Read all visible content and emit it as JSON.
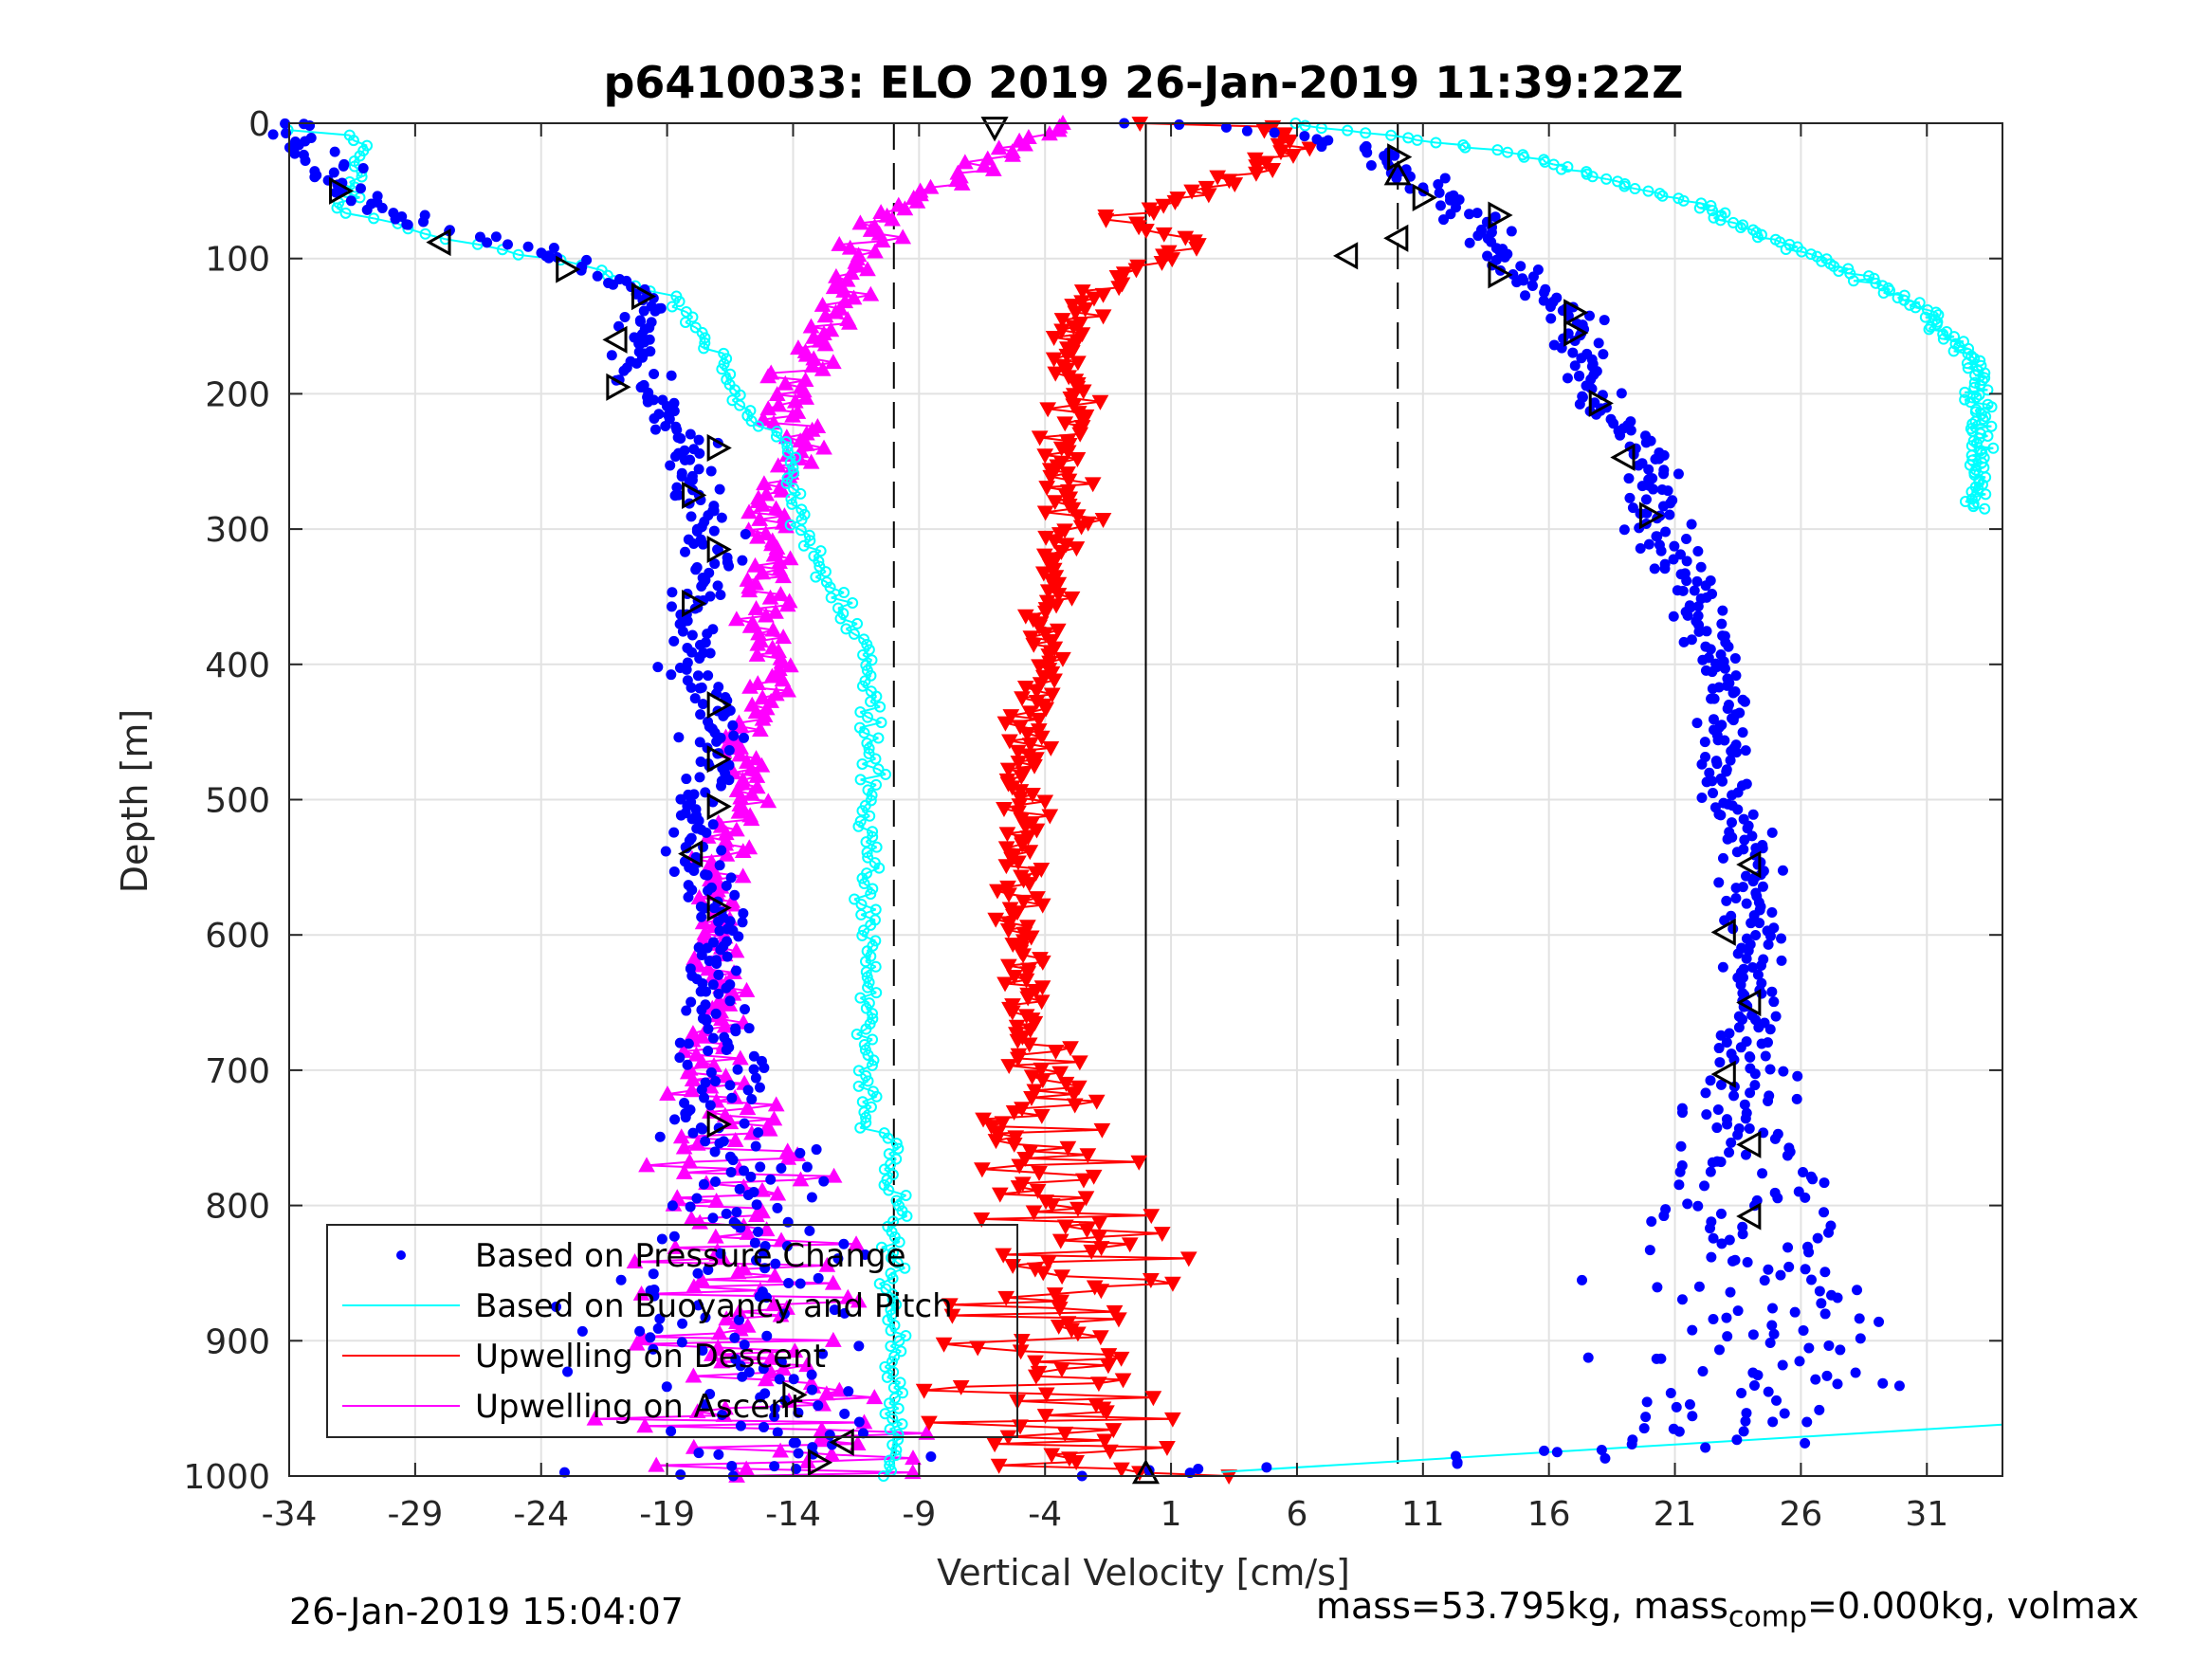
{
  "chart_data": {
    "type": "scatter",
    "title": "p6410033: ELO 2019 26-Jan-2019 11:39:22Z",
    "xlabel": "Vertical Velocity [cm/s]",
    "ylabel": "Depth [m]",
    "xlim": [
      -34,
      34
    ],
    "ylim": [
      0,
      1000
    ],
    "y_reversed": true,
    "xticks": [
      -34,
      -29,
      -24,
      -19,
      -14,
      -9,
      -4,
      1,
      6,
      11,
      16,
      21,
      26,
      31
    ],
    "yticks": [
      0,
      100,
      200,
      300,
      400,
      500,
      600,
      700,
      800,
      900,
      1000
    ],
    "grid": true,
    "legend_position": "bottom-left",
    "reference_lines": {
      "solid": [
        0
      ],
      "dashed": [
        -10,
        10
      ]
    },
    "colors": {
      "pressure": "#0000ff",
      "buoyancy": "#00ffff",
      "descent": "#ff0000",
      "ascent": "#ff00ff",
      "markers": "#000000"
    },
    "series": [
      {
        "name": "Based on Pressure Change",
        "marker": "dot",
        "descent": [
          [
            -34,
            0
          ],
          [
            -32,
            45
          ],
          [
            -29,
            75
          ],
          [
            -26,
            85
          ],
          [
            -22,
            105
          ],
          [
            -20,
            130
          ],
          [
            -20,
            170
          ],
          [
            -20,
            200
          ],
          [
            -18,
            240
          ],
          [
            -18,
            280
          ],
          [
            -17,
            320
          ],
          [
            -18,
            360
          ],
          [
            -18,
            400
          ],
          [
            -17,
            430
          ],
          [
            -17,
            470
          ],
          [
            -18,
            510
          ],
          [
            -18,
            550
          ],
          [
            -17,
            580
          ],
          [
            -17,
            640
          ],
          [
            -17,
            700
          ],
          [
            -17,
            740
          ],
          [
            -16,
            780
          ],
          [
            -16,
            830
          ],
          [
            -17,
            880
          ],
          [
            -16,
            930
          ],
          [
            -14,
            970
          ],
          [
            -14,
            1000
          ]
        ],
        "ascent": [
          [
            0,
            0
          ],
          [
            5,
            5
          ],
          [
            9,
            20
          ],
          [
            10,
            35
          ],
          [
            12,
            55
          ],
          [
            13,
            70
          ],
          [
            14,
            95
          ],
          [
            15,
            115
          ],
          [
            17,
            140
          ],
          [
            17,
            160
          ],
          [
            18,
            210
          ],
          [
            19,
            230
          ],
          [
            20,
            250
          ],
          [
            20,
            290
          ],
          [
            21,
            320
          ],
          [
            22,
            360
          ],
          [
            23,
            400
          ],
          [
            23,
            450
          ],
          [
            23,
            500
          ],
          [
            24,
            540
          ],
          [
            24,
            560
          ],
          [
            24,
            600
          ],
          [
            24,
            650
          ],
          [
            24,
            700
          ],
          [
            24,
            760
          ],
          [
            24,
            810
          ],
          [
            24,
            850
          ],
          [
            24,
            900
          ],
          [
            24,
            950
          ],
          [
            21,
            975
          ],
          [
            16,
            985
          ],
          [
            6,
            995
          ],
          [
            0,
            1000
          ]
        ]
      },
      {
        "name": "Based on Buoyancy and Pitch",
        "marker": "open-circle",
        "descent": [
          [
            -34,
            5
          ],
          [
            -31,
            10
          ],
          [
            -32,
            65
          ],
          [
            -29,
            80
          ],
          [
            -26,
            92
          ],
          [
            -22,
            108
          ],
          [
            -19,
            128
          ],
          [
            -17,
            175
          ],
          [
            -16,
            210
          ],
          [
            -14,
            240
          ],
          [
            -14,
            280
          ],
          [
            -13,
            320
          ],
          [
            -12,
            355
          ],
          [
            -11,
            400
          ],
          [
            -11,
            450
          ],
          [
            -11,
            500
          ],
          [
            -11,
            550
          ],
          [
            -11,
            600
          ],
          [
            -11,
            650
          ],
          [
            -11,
            700
          ],
          [
            -11,
            740
          ],
          [
            -10,
            760
          ],
          [
            -10,
            850
          ],
          [
            -10,
            950
          ],
          [
            -10,
            1000
          ]
        ],
        "ascent": [
          [
            6,
            0
          ],
          [
            10,
            10
          ],
          [
            14,
            20
          ],
          [
            18,
            40
          ],
          [
            22,
            60
          ],
          [
            24,
            80
          ],
          [
            27,
            100
          ],
          [
            29,
            120
          ],
          [
            31,
            140
          ],
          [
            32,
            160
          ],
          [
            33,
            180
          ],
          [
            33,
            200
          ],
          [
            33,
            230
          ],
          [
            33,
            285
          ],
          [
            3,
            997
          ]
        ]
      },
      {
        "name": "Upwelling on Descent",
        "marker": "triangle-down",
        "points": [
          [
            0,
            0
          ],
          [
            5,
            2
          ],
          [
            6,
            20
          ],
          [
            2,
            50
          ],
          [
            -1,
            70
          ],
          [
            2,
            90
          ],
          [
            -1,
            110
          ],
          [
            -3,
            150
          ],
          [
            -3,
            200
          ],
          [
            -3,
            250
          ],
          [
            -3,
            300
          ],
          [
            -4,
            350
          ],
          [
            -4,
            400
          ],
          [
            -5,
            450
          ],
          [
            -5,
            500
          ],
          [
            -5,
            550
          ],
          [
            -5,
            600
          ],
          [
            -5,
            650
          ],
          [
            -4,
            700
          ],
          [
            -4,
            750
          ],
          [
            -3,
            800
          ],
          [
            -3,
            850
          ],
          [
            -3,
            900
          ],
          [
            -3,
            950
          ],
          [
            -2,
            985
          ],
          [
            0,
            1000
          ]
        ]
      },
      {
        "name": "Upwelling on Ascent",
        "marker": "triangle-up",
        "points": [
          [
            -3,
            0
          ],
          [
            -6,
            20
          ],
          [
            -7,
            40
          ],
          [
            -10,
            60
          ],
          [
            -11,
            90
          ],
          [
            -12,
            120
          ],
          [
            -13,
            160
          ],
          [
            -14,
            200
          ],
          [
            -14,
            240
          ],
          [
            -15,
            280
          ],
          [
            -15,
            320
          ],
          [
            -15,
            380
          ],
          [
            -15,
            420
          ],
          [
            -16,
            460
          ],
          [
            -16,
            500
          ],
          [
            -17,
            550
          ],
          [
            -17,
            600
          ],
          [
            -17,
            650
          ],
          [
            -17,
            700
          ],
          [
            -16,
            750
          ],
          [
            -16,
            800
          ],
          [
            -16,
            850
          ],
          [
            -16,
            900
          ],
          [
            -15,
            950
          ],
          [
            -14,
            1000
          ]
        ]
      }
    ],
    "waypoint_markers": [
      {
        "x": -32,
        "y": 50,
        "dir": "right"
      },
      {
        "x": -28,
        "y": 88,
        "dir": "left"
      },
      {
        "x": -23,
        "y": 108,
        "dir": "right"
      },
      {
        "x": -20,
        "y": 128,
        "dir": "right"
      },
      {
        "x": -21,
        "y": 160,
        "dir": "left"
      },
      {
        "x": -21,
        "y": 195,
        "dir": "right"
      },
      {
        "x": -17,
        "y": 240,
        "dir": "right"
      },
      {
        "x": -18,
        "y": 275,
        "dir": "right"
      },
      {
        "x": -17,
        "y": 315,
        "dir": "right"
      },
      {
        "x": -18,
        "y": 355,
        "dir": "right"
      },
      {
        "x": -17,
        "y": 430,
        "dir": "right"
      },
      {
        "x": -17,
        "y": 470,
        "dir": "right"
      },
      {
        "x": -17,
        "y": 505,
        "dir": "right"
      },
      {
        "x": -18,
        "y": 540,
        "dir": "left"
      },
      {
        "x": -17,
        "y": 580,
        "dir": "right"
      },
      {
        "x": -17,
        "y": 740,
        "dir": "right"
      },
      {
        "x": -14,
        "y": 940,
        "dir": "right"
      },
      {
        "x": -12,
        "y": 975,
        "dir": "left"
      },
      {
        "x": -13,
        "y": 990,
        "dir": "right"
      },
      {
        "x": -6,
        "y": 3,
        "dir": "down"
      },
      {
        "x": 10,
        "y": 25,
        "dir": "right"
      },
      {
        "x": 10,
        "y": 38,
        "dir": "up"
      },
      {
        "x": 11,
        "y": 55,
        "dir": "right"
      },
      {
        "x": 14,
        "y": 68,
        "dir": "right"
      },
      {
        "x": 10,
        "y": 85,
        "dir": "left"
      },
      {
        "x": 8,
        "y": 98,
        "dir": "left"
      },
      {
        "x": 14,
        "y": 112,
        "dir": "right"
      },
      {
        "x": 17,
        "y": 140,
        "dir": "right"
      },
      {
        "x": 17,
        "y": 155,
        "dir": "right"
      },
      {
        "x": 18,
        "y": 207,
        "dir": "right"
      },
      {
        "x": 19,
        "y": 247,
        "dir": "left"
      },
      {
        "x": 20,
        "y": 290,
        "dir": "right"
      },
      {
        "x": 24,
        "y": 548,
        "dir": "left"
      },
      {
        "x": 23,
        "y": 598,
        "dir": "left"
      },
      {
        "x": 24,
        "y": 650,
        "dir": "left"
      },
      {
        "x": 23,
        "y": 703,
        "dir": "left"
      },
      {
        "x": 24,
        "y": 755,
        "dir": "left"
      },
      {
        "x": 24,
        "y": 808,
        "dir": "left"
      },
      {
        "x": 0,
        "y": 998,
        "dir": "up"
      }
    ]
  },
  "footer": {
    "timestamp": "26-Jan-2019 15:04:07",
    "mass_text": "mass=53.795kg, mass",
    "mass_sub": "comp",
    "mass_tail": "=0.000kg, volmax"
  }
}
